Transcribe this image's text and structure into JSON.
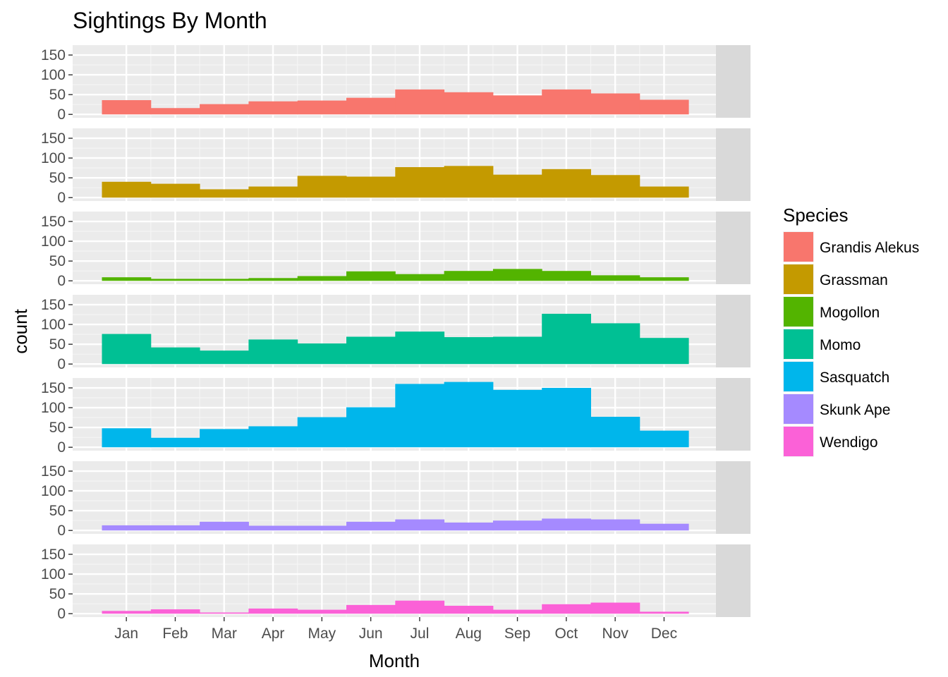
{
  "chart_data": {
    "type": "bar",
    "title": "Sightings By Month",
    "xlabel": "Month",
    "ylabel": "count",
    "categories": [
      "Jan",
      "Feb",
      "Mar",
      "Apr",
      "May",
      "Jun",
      "Jul",
      "Aug",
      "Sep",
      "Oct",
      "Nov",
      "Dec"
    ],
    "ylim": [
      0,
      175
    ],
    "yticks": [
      0,
      50,
      100,
      150
    ],
    "yticklabels": [
      "0",
      "50",
      "100",
      "150"
    ],
    "grid": true,
    "facets": "rows by species",
    "legend": {
      "title": "Species",
      "position": "right"
    },
    "series": [
      {
        "name": "Grandis Alekus",
        "strip_label": "Grandis Alekus",
        "color": "#F8766D",
        "values": [
          36,
          16,
          26,
          33,
          35,
          42,
          63,
          56,
          48,
          63,
          53,
          37
        ]
      },
      {
        "name": "Grassman",
        "strip_label": "Grassman",
        "color": "#C49A00",
        "values": [
          40,
          35,
          21,
          28,
          55,
          53,
          77,
          80,
          58,
          72,
          57,
          28
        ]
      },
      {
        "name": "Mogollon",
        "strip_label": "Mogollon",
        "color": "#53B400",
        "values": [
          9,
          5,
          5,
          7,
          12,
          24,
          17,
          25,
          30,
          25,
          14,
          9
        ]
      },
      {
        "name": "Momo",
        "strip_label": "Momo",
        "color": "#00C094",
        "values": [
          76,
          42,
          34,
          62,
          52,
          69,
          82,
          68,
          69,
          127,
          103,
          66
        ]
      },
      {
        "name": "Sasquatch",
        "strip_label": "Sasquatch",
        "color": "#00B6EB",
        "values": [
          48,
          24,
          46,
          53,
          76,
          101,
          160,
          165,
          145,
          150,
          77,
          42
        ]
      },
      {
        "name": "Skunk Ape",
        "strip_label": "Skunk Ape",
        "color": "#A58AFF",
        "values": [
          13,
          13,
          22,
          12,
          12,
          22,
          28,
          20,
          25,
          30,
          28,
          17
        ]
      },
      {
        "name": "Wendigo",
        "strip_label": "Wendigo",
        "color": "#FB61D7",
        "values": [
          7,
          11,
          3,
          13,
          10,
          22,
          33,
          20,
          10,
          24,
          28,
          5
        ]
      }
    ]
  }
}
